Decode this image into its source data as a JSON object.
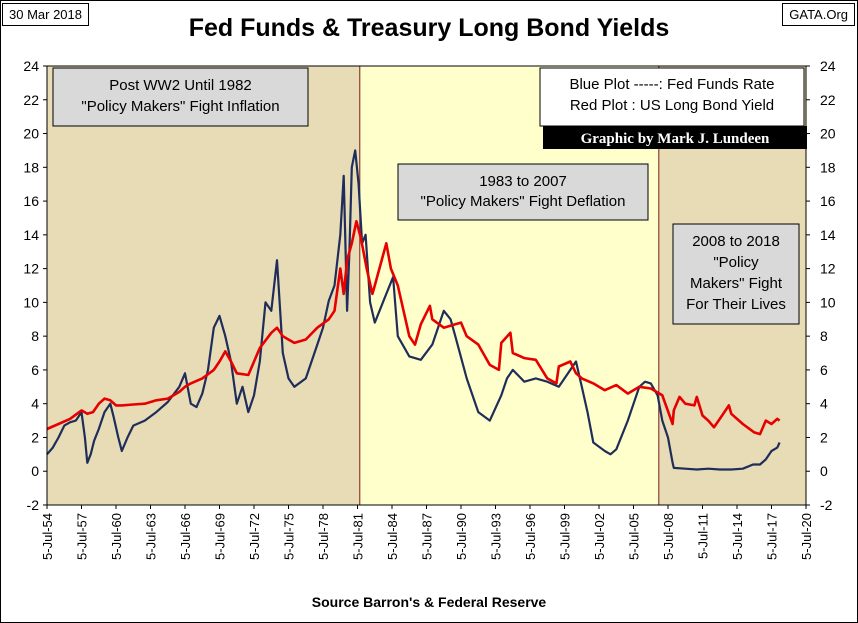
{
  "header": {
    "date": "30 Mar 2018",
    "site": "GATA.Org",
    "title": "Fed Funds & Treasury Long Bond Yields"
  },
  "footer": {
    "source": "Source Barron's & Federal Reserve"
  },
  "colors": {
    "fed_funds": "#1f2d5a",
    "long_bond": "#e60000",
    "era1_bg": "#e8dcb6",
    "era2_bg": "#ffffcc",
    "era3_bg": "#e8dcb6"
  },
  "annotations": {
    "era1": [
      "Post WW2 Until 1982",
      "\"Policy Makers\" Fight Inflation"
    ],
    "era2": [
      "1983 to 2007",
      "\"Policy Makers\" Fight Deflation"
    ],
    "era3": [
      "2008 to 2018",
      "\"Policy",
      "Makers\" Fight",
      "For Their Lives"
    ],
    "legend": [
      "Blue Plot -----: Fed Funds Rate",
      "Red Plot : US Long Bond Yield"
    ],
    "credit": "Graphic by Mark J. Lundeen"
  },
  "chart_data": {
    "type": "line",
    "title": "Fed Funds & Treasury Long Bond Yields",
    "ylim": [
      -2,
      24
    ],
    "xlim": [
      1954.5,
      2020.5
    ],
    "y_ticks": [
      -2,
      0,
      2,
      4,
      6,
      8,
      10,
      12,
      14,
      16,
      18,
      20,
      22,
      24
    ],
    "x_ticks": [
      "5-Jul-54",
      "5-Jul-57",
      "5-Jul-60",
      "5-Jul-63",
      "5-Jul-66",
      "5-Jul-69",
      "5-Jul-72",
      "5-Jul-75",
      "5-Jul-78",
      "5-Jul-81",
      "5-Jul-84",
      "5-Jul-87",
      "5-Jul-90",
      "5-Jul-93",
      "5-Jul-96",
      "5-Jul-99",
      "5-Jul-02",
      "5-Jul-05",
      "5-Jul-08",
      "5-Jul-11",
      "5-Jul-14",
      "5-Jul-17",
      "5-Jul-20"
    ],
    "x_tick_years": [
      1954.5,
      1957.5,
      1960.5,
      1963.5,
      1966.5,
      1969.5,
      1972.5,
      1975.5,
      1978.5,
      1981.5,
      1984.5,
      1987.5,
      1990.5,
      1993.5,
      1996.5,
      1999.5,
      2002.5,
      2005.5,
      2008.5,
      2011.5,
      2014.5,
      2017.5,
      2020.5
    ],
    "regions": [
      {
        "start": 1954.5,
        "end": 1981.7
      },
      {
        "start": 1981.7,
        "end": 2007.7
      },
      {
        "start": 2007.7,
        "end": 2020.5
      }
    ],
    "series": [
      {
        "name": "Fed Funds Rate",
        "x": [
          1954.5,
          1955.0,
          1955.5,
          1956.0,
          1956.5,
          1957.0,
          1957.5,
          1957.8,
          1958.0,
          1958.3,
          1958.6,
          1959.0,
          1959.5,
          1960.0,
          1960.3,
          1960.7,
          1961.0,
          1961.5,
          1962.0,
          1963.0,
          1964.0,
          1965.0,
          1966.0,
          1966.5,
          1967.0,
          1967.5,
          1968.0,
          1968.5,
          1969.0,
          1969.5,
          1970.0,
          1970.5,
          1971.0,
          1971.5,
          1972.0,
          1972.5,
          1973.0,
          1973.5,
          1974.0,
          1974.5,
          1975.0,
          1975.5,
          1976.0,
          1977.0,
          1978.0,
          1978.5,
          1979.0,
          1979.5,
          1980.0,
          1980.3,
          1980.6,
          1980.8,
          1981.0,
          1981.3,
          1981.6,
          1981.9,
          1982.2,
          1982.6,
          1983.0,
          1984.0,
          1984.6,
          1985.0,
          1986.0,
          1987.0,
          1988.0,
          1989.0,
          1989.6,
          1990.0,
          1991.0,
          1992.0,
          1993.0,
          1994.0,
          1994.5,
          1995.0,
          1996.0,
          1997.0,
          1998.0,
          1999.0,
          2000.0,
          2000.5,
          2001.0,
          2001.5,
          2002.0,
          2003.0,
          2003.5,
          2004.0,
          2005.0,
          2006.0,
          2006.5,
          2007.0,
          2007.6,
          2008.0,
          2008.5,
          2008.9,
          2009.0,
          2010.0,
          2011.0,
          2012.0,
          2013.0,
          2014.0,
          2015.0,
          2015.9,
          2016.5,
          2017.0,
          2017.5,
          2018.0,
          2018.2
        ],
        "values": [
          1.0,
          1.4,
          2.0,
          2.7,
          2.9,
          3.0,
          3.5,
          2.0,
          0.5,
          1.0,
          1.8,
          2.5,
          3.5,
          4.0,
          3.2,
          2.0,
          1.2,
          2.0,
          2.7,
          3.0,
          3.5,
          4.1,
          5.0,
          5.8,
          4.0,
          3.8,
          4.6,
          6.0,
          8.5,
          9.2,
          8.0,
          6.5,
          4.0,
          5.0,
          3.5,
          4.5,
          6.5,
          10.0,
          9.5,
          12.5,
          7.0,
          5.5,
          5.0,
          5.5,
          7.5,
          8.5,
          10.1,
          11.0,
          14.0,
          17.5,
          9.5,
          13.0,
          18.0,
          19.0,
          17.0,
          13.5,
          14.0,
          10.0,
          8.8,
          10.5,
          11.5,
          8.0,
          6.8,
          6.6,
          7.5,
          9.5,
          9.0,
          8.0,
          5.5,
          3.5,
          3.0,
          4.5,
          5.5,
          6.0,
          5.3,
          5.5,
          5.3,
          5.0,
          6.0,
          6.5,
          5.0,
          3.5,
          1.7,
          1.2,
          1.0,
          1.3,
          3.0,
          5.0,
          5.3,
          5.2,
          4.5,
          3.0,
          2.0,
          0.5,
          0.2,
          0.15,
          0.1,
          0.15,
          0.1,
          0.1,
          0.15,
          0.4,
          0.4,
          0.7,
          1.2,
          1.4,
          1.7
        ]
      },
      {
        "name": "US Long Bond Yield",
        "x": [
          1954.5,
          1955.5,
          1956.5,
          1957.5,
          1958.0,
          1958.5,
          1959.0,
          1959.5,
          1960.0,
          1960.5,
          1961.0,
          1962.0,
          1963.0,
          1964.0,
          1965.0,
          1966.0,
          1966.5,
          1967.0,
          1968.0,
          1969.0,
          1969.5,
          1970.0,
          1970.5,
          1971.0,
          1972.0,
          1973.0,
          1974.0,
          1974.5,
          1975.0,
          1976.0,
          1977.0,
          1978.0,
          1979.0,
          1979.5,
          1980.0,
          1980.3,
          1980.6,
          1981.0,
          1981.4,
          1981.8,
          1982.3,
          1982.8,
          1983.0,
          1984.0,
          1984.4,
          1985.0,
          1986.0,
          1986.5,
          1987.0,
          1987.8,
          1988.0,
          1989.0,
          1990.0,
          1990.5,
          1991.0,
          1992.0,
          1993.0,
          1993.8,
          1994.0,
          1994.8,
          1995.0,
          1996.0,
          1997.0,
          1998.0,
          1998.8,
          1999.0,
          2000.0,
          2000.5,
          2001.0,
          2002.0,
          2003.0,
          2004.0,
          2005.0,
          2006.0,
          2007.0,
          2008.0,
          2008.9,
          2009.0,
          2009.5,
          2010.0,
          2010.8,
          2011.0,
          2011.5,
          2012.0,
          2012.5,
          2013.0,
          2013.8,
          2014.0,
          2015.0,
          2016.0,
          2016.5,
          2017.0,
          2017.5,
          2018.0,
          2018.2
        ],
        "values": [
          2.5,
          2.8,
          3.1,
          3.6,
          3.4,
          3.5,
          4.0,
          4.3,
          4.2,
          3.9,
          3.9,
          3.95,
          4.0,
          4.2,
          4.3,
          4.7,
          5.0,
          5.2,
          5.5,
          6.0,
          6.5,
          7.1,
          6.5,
          5.8,
          5.7,
          7.3,
          8.2,
          8.5,
          8.0,
          7.6,
          7.8,
          8.5,
          9.0,
          9.5,
          12.0,
          10.5,
          12.5,
          13.5,
          14.8,
          13.8,
          12.0,
          10.5,
          11.0,
          13.5,
          12.0,
          11.0,
          8.0,
          7.5,
          8.7,
          9.8,
          9.0,
          8.5,
          8.7,
          8.8,
          8.0,
          7.5,
          6.3,
          6.0,
          7.6,
          8.2,
          7.0,
          6.7,
          6.6,
          5.5,
          5.2,
          6.2,
          6.5,
          5.8,
          5.5,
          5.2,
          4.8,
          5.1,
          4.6,
          5.0,
          4.9,
          4.5,
          2.8,
          3.6,
          4.4,
          4.0,
          3.9,
          4.4,
          3.3,
          3.0,
          2.6,
          3.1,
          3.9,
          3.4,
          2.8,
          2.3,
          2.2,
          3.0,
          2.8,
          3.1,
          3.0
        ]
      }
    ]
  }
}
